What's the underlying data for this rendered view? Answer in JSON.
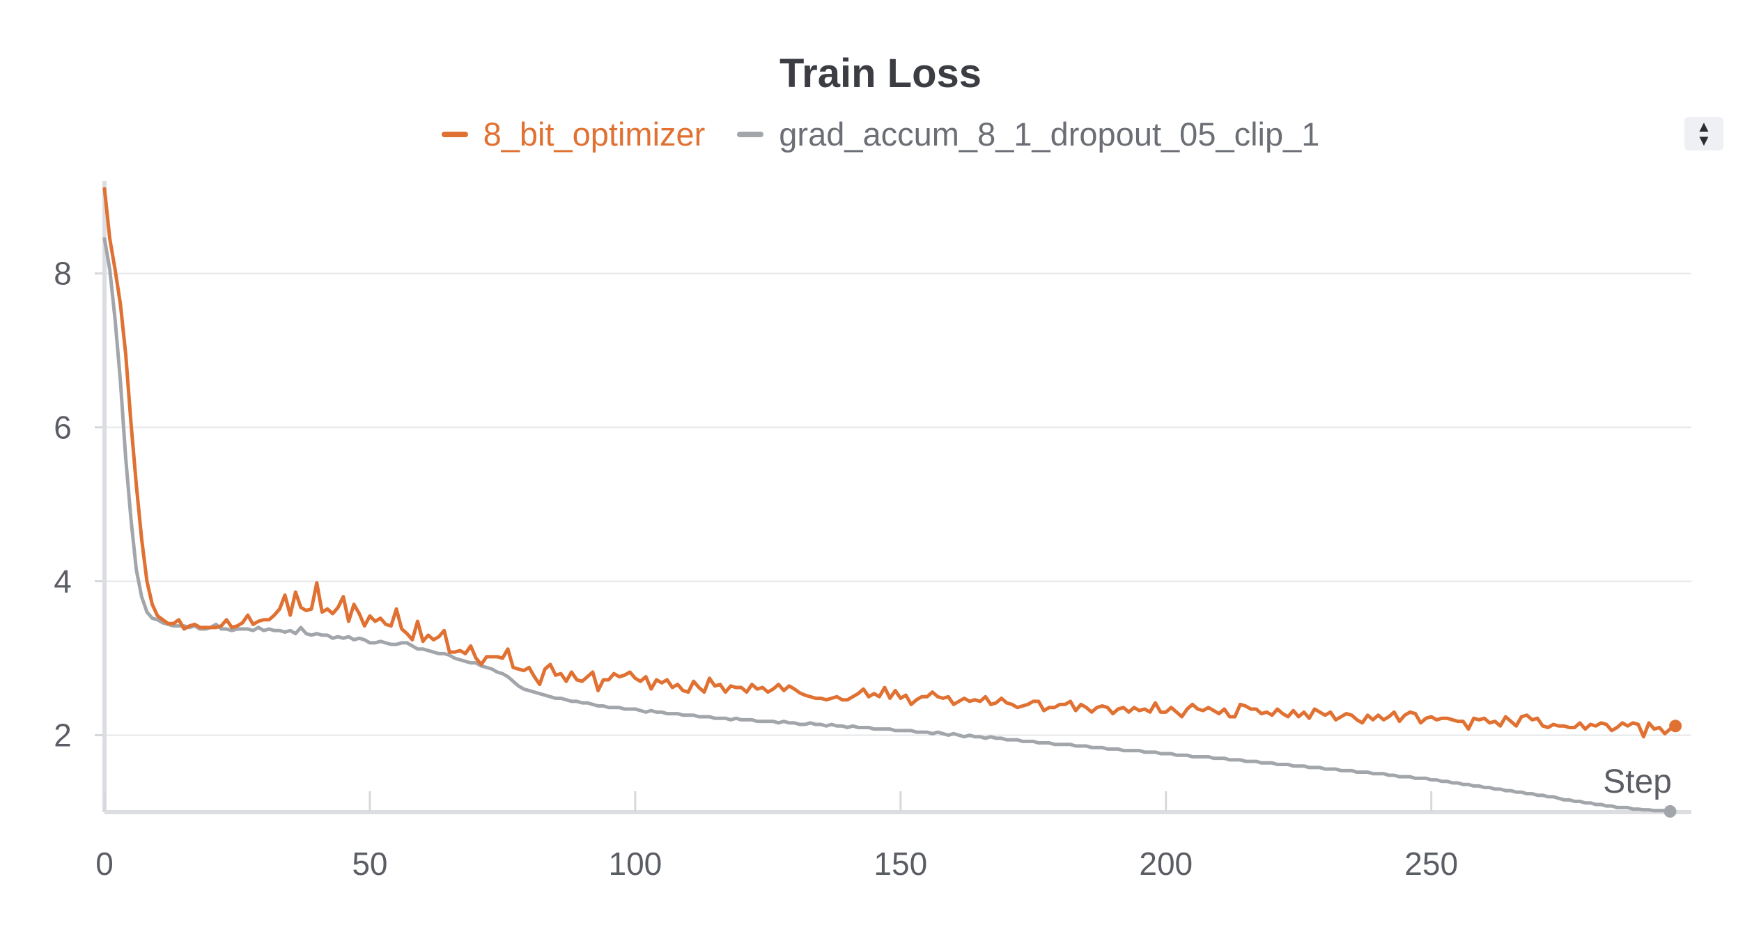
{
  "chart_data": {
    "type": "line",
    "title": "Train Loss",
    "xlabel": "Step",
    "ylabel": "",
    "xlim": [
      0,
      299
    ],
    "ylim": [
      1.0,
      9.2
    ],
    "xticks": [
      "0",
      "50",
      "100",
      "150",
      "200",
      "250"
    ],
    "yticks": [
      "2",
      "4",
      "6",
      "8"
    ],
    "grid": true,
    "legend_position": "top-center",
    "series": [
      {
        "name": "8_bit_optimizer",
        "color": "#e07132",
        "values": [
          9.1,
          8.45,
          8.05,
          7.6,
          6.95,
          6.05,
          5.25,
          4.55,
          4.0,
          3.7,
          3.55,
          3.5,
          3.45,
          3.45,
          3.5,
          3.38,
          3.42,
          3.44,
          3.4,
          3.4,
          3.4,
          3.4,
          3.42,
          3.5,
          3.4,
          3.42,
          3.46,
          3.56,
          3.44,
          3.48,
          3.5,
          3.5,
          3.56,
          3.64,
          3.82,
          3.56,
          3.86,
          3.66,
          3.62,
          3.64,
          3.98,
          3.6,
          3.64,
          3.58,
          3.66,
          3.8,
          3.48,
          3.7,
          3.58,
          3.42,
          3.55,
          3.48,
          3.52,
          3.44,
          3.42,
          3.64,
          3.38,
          3.32,
          3.24,
          3.48,
          3.22,
          3.3,
          3.24,
          3.28,
          3.36,
          3.08,
          3.08,
          3.1,
          3.06,
          3.16,
          3.0,
          2.92,
          3.02,
          3.02,
          3.02,
          3.0,
          3.12,
          2.88,
          2.86,
          2.84,
          2.88,
          2.76,
          2.66,
          2.86,
          2.92,
          2.78,
          2.8,
          2.7,
          2.82,
          2.72,
          2.7,
          2.76,
          2.82,
          2.58,
          2.72,
          2.72,
          2.8,
          2.76,
          2.78,
          2.82,
          2.74,
          2.7,
          2.76,
          2.6,
          2.72,
          2.68,
          2.72,
          2.62,
          2.66,
          2.58,
          2.56,
          2.7,
          2.62,
          2.56,
          2.74,
          2.64,
          2.66,
          2.56,
          2.64,
          2.62,
          2.62,
          2.56,
          2.66,
          2.6,
          2.62,
          2.56,
          2.6,
          2.66,
          2.58,
          2.64,
          2.6,
          2.55,
          2.52,
          2.5,
          2.48,
          2.48,
          2.46,
          2.48,
          2.5,
          2.46,
          2.46,
          2.5,
          2.54,
          2.6,
          2.5,
          2.54,
          2.5,
          2.62,
          2.48,
          2.58,
          2.48,
          2.52,
          2.4,
          2.46,
          2.5,
          2.5,
          2.56,
          2.5,
          2.48,
          2.5,
          2.4,
          2.44,
          2.48,
          2.44,
          2.46,
          2.44,
          2.5,
          2.4,
          2.42,
          2.48,
          2.42,
          2.4,
          2.36,
          2.38,
          2.4,
          2.44,
          2.44,
          2.32,
          2.36,
          2.36,
          2.4,
          2.4,
          2.44,
          2.32,
          2.4,
          2.36,
          2.3,
          2.36,
          2.38,
          2.36,
          2.28,
          2.34,
          2.36,
          2.3,
          2.36,
          2.32,
          2.34,
          2.3,
          2.42,
          2.3,
          2.3,
          2.36,
          2.3,
          2.24,
          2.34,
          2.4,
          2.34,
          2.32,
          2.36,
          2.32,
          2.28,
          2.34,
          2.24,
          2.24,
          2.4,
          2.38,
          2.34,
          2.34,
          2.28,
          2.3,
          2.26,
          2.34,
          2.28,
          2.24,
          2.32,
          2.24,
          2.3,
          2.22,
          2.34,
          2.3,
          2.26,
          2.3,
          2.2,
          2.24,
          2.28,
          2.26,
          2.2,
          2.16,
          2.26,
          2.2,
          2.26,
          2.2,
          2.24,
          2.3,
          2.18,
          2.26,
          2.3,
          2.28,
          2.16,
          2.22,
          2.24,
          2.2,
          2.22,
          2.22,
          2.2,
          2.18,
          2.18,
          2.08,
          2.22,
          2.2,
          2.22,
          2.16,
          2.18,
          2.12,
          2.24,
          2.18,
          2.12,
          2.24,
          2.26,
          2.2,
          2.22,
          2.12,
          2.1,
          2.14,
          2.12,
          2.12,
          2.1,
          2.1,
          2.16,
          2.08,
          2.14,
          2.12,
          2.16,
          2.14,
          2.06,
          2.1,
          2.16,
          2.12,
          2.16,
          2.14,
          1.98,
          2.16,
          2.08,
          2.1,
          2.02,
          2.08,
          2.12
        ],
        "point_label": ""
      },
      {
        "name": "grad_accum_8_1_dropout_05_clip_1",
        "color": "#a2a6ab",
        "values": [
          8.45,
          8.05,
          7.4,
          6.6,
          5.6,
          4.8,
          4.15,
          3.8,
          3.6,
          3.52,
          3.5,
          3.46,
          3.44,
          3.42,
          3.42,
          3.42,
          3.4,
          3.42,
          3.38,
          3.38,
          3.4,
          3.44,
          3.38,
          3.38,
          3.36,
          3.38,
          3.38,
          3.38,
          3.36,
          3.4,
          3.36,
          3.38,
          3.36,
          3.36,
          3.34,
          3.36,
          3.32,
          3.4,
          3.32,
          3.3,
          3.32,
          3.3,
          3.3,
          3.26,
          3.28,
          3.26,
          3.28,
          3.24,
          3.26,
          3.24,
          3.2,
          3.2,
          3.22,
          3.2,
          3.18,
          3.18,
          3.2,
          3.2,
          3.16,
          3.12,
          3.12,
          3.1,
          3.08,
          3.06,
          3.06,
          3.04,
          3.0,
          2.98,
          2.96,
          2.94,
          2.94,
          2.9,
          2.88,
          2.86,
          2.82,
          2.8,
          2.76,
          2.7,
          2.64,
          2.6,
          2.58,
          2.56,
          2.54,
          2.52,
          2.5,
          2.48,
          2.48,
          2.46,
          2.44,
          2.44,
          2.42,
          2.42,
          2.4,
          2.38,
          2.38,
          2.36,
          2.36,
          2.36,
          2.34,
          2.34,
          2.34,
          2.32,
          2.3,
          2.32,
          2.3,
          2.3,
          2.28,
          2.28,
          2.28,
          2.26,
          2.26,
          2.26,
          2.24,
          2.24,
          2.24,
          2.22,
          2.22,
          2.22,
          2.2,
          2.22,
          2.2,
          2.2,
          2.2,
          2.18,
          2.18,
          2.18,
          2.18,
          2.16,
          2.18,
          2.16,
          2.16,
          2.14,
          2.14,
          2.16,
          2.14,
          2.14,
          2.12,
          2.14,
          2.12,
          2.12,
          2.1,
          2.12,
          2.1,
          2.1,
          2.1,
          2.08,
          2.08,
          2.08,
          2.08,
          2.06,
          2.06,
          2.06,
          2.06,
          2.04,
          2.04,
          2.04,
          2.02,
          2.04,
          2.02,
          2.0,
          2.02,
          2.0,
          1.98,
          2.0,
          1.98,
          1.98,
          1.96,
          1.98,
          1.96,
          1.96,
          1.94,
          1.94,
          1.94,
          1.92,
          1.92,
          1.92,
          1.9,
          1.9,
          1.9,
          1.88,
          1.88,
          1.88,
          1.88,
          1.86,
          1.86,
          1.86,
          1.84,
          1.84,
          1.84,
          1.82,
          1.82,
          1.82,
          1.8,
          1.8,
          1.8,
          1.8,
          1.78,
          1.78,
          1.78,
          1.76,
          1.76,
          1.76,
          1.74,
          1.74,
          1.74,
          1.72,
          1.72,
          1.72,
          1.72,
          1.7,
          1.7,
          1.7,
          1.68,
          1.68,
          1.68,
          1.66,
          1.66,
          1.66,
          1.64,
          1.64,
          1.64,
          1.62,
          1.62,
          1.62,
          1.6,
          1.6,
          1.6,
          1.58,
          1.58,
          1.58,
          1.56,
          1.56,
          1.56,
          1.54,
          1.54,
          1.54,
          1.52,
          1.52,
          1.52,
          1.5,
          1.5,
          1.5,
          1.48,
          1.48,
          1.46,
          1.46,
          1.46,
          1.44,
          1.44,
          1.44,
          1.42,
          1.42,
          1.4,
          1.4,
          1.38,
          1.38,
          1.36,
          1.36,
          1.34,
          1.34,
          1.32,
          1.32,
          1.3,
          1.3,
          1.28,
          1.28,
          1.26,
          1.26,
          1.24,
          1.24,
          1.22,
          1.22,
          1.2,
          1.2,
          1.18,
          1.16,
          1.16,
          1.14,
          1.14,
          1.12,
          1.12,
          1.1,
          1.1,
          1.08,
          1.08,
          1.06,
          1.06,
          1.06,
          1.04,
          1.04,
          1.03,
          1.03,
          1.02,
          1.02,
          1.02,
          1.01
        ],
        "point_label": ""
      }
    ]
  },
  "ui": {
    "scroll_up_glyph": "▲",
    "scroll_down_glyph": "▼"
  }
}
